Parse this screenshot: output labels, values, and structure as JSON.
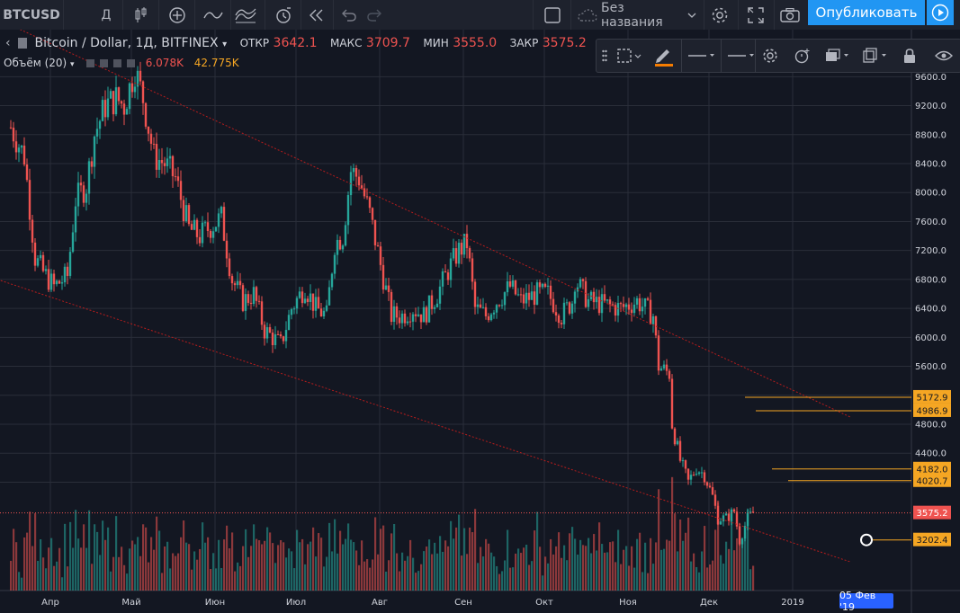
{
  "toolbar": {
    "symbol": "BTCUSD",
    "interval": "Д",
    "layout_name": "Без названия",
    "publish_label": "Опубликовать",
    "icons": [
      "candles-icon",
      "plus-circle-icon",
      "indicator-icon",
      "templates-icon",
      "alert-icon",
      "rewind-icon",
      "undo-icon",
      "redo-icon",
      "layout-icon",
      "cloud-icon",
      "chevron-down-icon",
      "gear-icon",
      "fullscreen-icon",
      "camera-icon",
      "play-icon"
    ]
  },
  "legend": {
    "title": "Bitcoin / Dollar, 1Д, BITFINEX",
    "open_label": "ОТКР",
    "open": "3642.1",
    "high_label": "МАКС",
    "high": "3709.7",
    "low_label": "МИН",
    "low": "3555.0",
    "close_label": "ЗАКР",
    "close": "3575.2"
  },
  "volume_legend": {
    "label": "Объём (20)",
    "value1": "6.078K",
    "value2": "42.775K"
  },
  "drawing_toolbar": {
    "icons": [
      "drag-handle-icon",
      "select-icon",
      "pencil-icon",
      "line-style-icon",
      "line-width-icon",
      "gear-icon",
      "alert-plus-icon",
      "layers-icon",
      "clone-icon",
      "lock-icon",
      "eye-icon"
    ]
  },
  "colors": {
    "up": "#26a69a",
    "down": "#ef5350",
    "background": "#131722",
    "grid": "#2a2e39",
    "hline": "#f5a623",
    "price_tag": "#f5a623",
    "last_price": "#ef5350",
    "accent": "#2196f3"
  },
  "chart_data": {
    "type": "candlestick",
    "title": "Bitcoin / Dollar, 1Д, BITFINEX",
    "y_ticks": [
      "9600.0",
      "9200.0",
      "8800.0",
      "8400.0",
      "8000.0",
      "7600.0",
      "7200.0",
      "6800.0",
      "6400.0",
      "6000.0",
      "5600.0",
      "5200.0",
      "4800.0",
      "4400.0",
      "4000.0"
    ],
    "ylim": [
      3000,
      10200
    ],
    "x_ticks": [
      "Апр",
      "Май",
      "Июн",
      "Июл",
      "Авг",
      "Сен",
      "Окт",
      "Ноя",
      "Дек",
      "2019"
    ],
    "date_label": "05 Фев '19",
    "last_price": "3575.2",
    "horizontal_levels": [
      {
        "label": "5172.9",
        "value": 5172.9
      },
      {
        "label": "4986.9",
        "value": 4986.9
      },
      {
        "label": "4182.0",
        "value": 4182.0
      },
      {
        "label": "4020.7",
        "value": 4020.7
      },
      {
        "label": "3202.4",
        "value": 3202.4
      }
    ],
    "close_path": [
      [
        "2018-03-20",
        8900
      ],
      [
        "2018-03-25",
        8500
      ],
      [
        "2018-03-29",
        7100
      ],
      [
        "2018-04-01",
        6900
      ],
      [
        "2018-04-05",
        6700
      ],
      [
        "2018-04-10",
        6850
      ],
      [
        "2018-04-13",
        7900
      ],
      [
        "2018-04-17",
        8100
      ],
      [
        "2018-04-20",
        8800
      ],
      [
        "2018-04-24",
        9200
      ],
      [
        "2018-04-28",
        9300
      ],
      [
        "2018-05-01",
        9200
      ],
      [
        "2018-05-05",
        9700
      ],
      [
        "2018-05-08",
        9300
      ],
      [
        "2018-05-12",
        8500
      ],
      [
        "2018-05-16",
        8400
      ],
      [
        "2018-05-20",
        8200
      ],
      [
        "2018-05-25",
        7500
      ],
      [
        "2018-05-29",
        7400
      ],
      [
        "2018-06-01",
        7500
      ],
      [
        "2018-06-06",
        7650
      ],
      [
        "2018-06-10",
        6800
      ],
      [
        "2018-06-14",
        6500
      ],
      [
        "2018-06-18",
        6600
      ],
      [
        "2018-06-22",
        6100
      ],
      [
        "2018-06-28",
        5900
      ],
      [
        "2018-07-02",
        6400
      ],
      [
        "2018-07-07",
        6700
      ],
      [
        "2018-07-11",
        6400
      ],
      [
        "2018-07-15",
        6300
      ],
      [
        "2018-07-18",
        7300
      ],
      [
        "2018-07-21",
        7400
      ],
      [
        "2018-07-24",
        8300
      ],
      [
        "2018-07-27",
        8200
      ],
      [
        "2018-07-31",
        7700
      ],
      [
        "2018-08-04",
        7000
      ],
      [
        "2018-08-08",
        6300
      ],
      [
        "2018-08-12",
        6300
      ],
      [
        "2018-08-16",
        6400
      ],
      [
        "2018-08-20",
        6300
      ],
      [
        "2018-08-25",
        6600
      ],
      [
        "2018-08-30",
        7000
      ],
      [
        "2018-09-02",
        7200
      ],
      [
        "2018-09-05",
        7300
      ],
      [
        "2018-09-08",
        6400
      ],
      [
        "2018-09-12",
        6300
      ],
      [
        "2018-09-16",
        6500
      ],
      [
        "2018-09-21",
        6700
      ],
      [
        "2018-09-25",
        6500
      ],
      [
        "2018-10-01",
        6600
      ],
      [
        "2018-10-05",
        6600
      ],
      [
        "2018-10-10",
        6300
      ],
      [
        "2018-10-14",
        6500
      ],
      [
        "2018-10-15",
        6800
      ],
      [
        "2018-10-20",
        6500
      ],
      [
        "2018-10-26",
        6450
      ],
      [
        "2018-11-01",
        6400
      ],
      [
        "2018-11-07",
        6500
      ],
      [
        "2018-11-13",
        6300
      ],
      [
        "2018-11-15",
        5600
      ],
      [
        "2018-11-19",
        5500
      ],
      [
        "2018-11-20",
        4800
      ],
      [
        "2018-11-23",
        4300
      ],
      [
        "2018-11-26",
        4000
      ],
      [
        "2018-11-29",
        4200
      ],
      [
        "2018-12-02",
        4100
      ],
      [
        "2018-12-05",
        3800
      ],
      [
        "2018-12-07",
        3500
      ],
      [
        "2018-12-10",
        3500
      ],
      [
        "2018-12-13",
        3600
      ],
      [
        "2018-12-15",
        3200
      ],
      [
        "2018-12-18",
        3500
      ],
      [
        "2018-12-20",
        3575
      ]
    ],
    "trend_lines": [
      {
        "from": [
          "2018-03-15",
          10400
        ],
        "to": [
          "2019-01-25",
          4900
        ]
      },
      {
        "from": [
          "2018-03-15",
          6800
        ],
        "to": [
          "2019-01-25",
          2900
        ]
      }
    ]
  }
}
